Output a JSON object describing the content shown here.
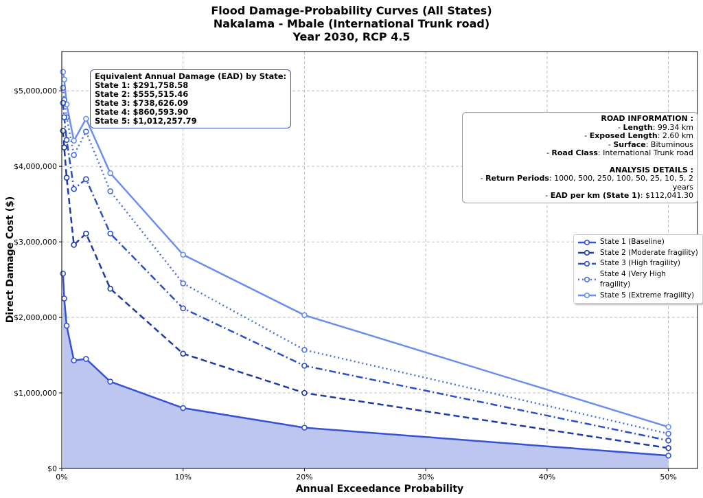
{
  "title": [
    "Flood Damage-Probability Curves (All States)",
    "Nakalama - Mbale (International Trunk road)",
    "Year 2030, RCP 4.5"
  ],
  "ead_box": {
    "heading": "Equivalent Annual Damage (EAD) by State:",
    "lines": [
      "State 1: $291,758.58",
      "State 2: $555,515.46",
      "State 3: $738,626.09",
      "State 4: $860,593.90",
      "State 5: $1,012,257.79"
    ]
  },
  "road_info": {
    "heading": "ROAD INFORMATION :",
    "items": [
      {
        "label": "Length",
        "value": "99.34 km"
      },
      {
        "label": "Exposed Length",
        "value": "2.60 km"
      },
      {
        "label": "Surface",
        "value": "Bituminous"
      },
      {
        "label": "Road Class",
        "value": "International Trunk road"
      }
    ],
    "analysis_heading": "ANALYSIS DETAILS :",
    "analysis_items": [
      {
        "label": "Return Periods",
        "value": "1000, 500, 250, 100, 50, 25, 10, 5, 2 years"
      },
      {
        "label": "EAD per km (State 1)",
        "value": "$112,041.30"
      }
    ]
  },
  "chart_data": {
    "type": "line",
    "title": "Flood Damage-Probability Curves (All States)",
    "xlabel": "Annual Exceedance Probability",
    "ylabel": "Direct Damage Cost ($)",
    "xlim": [
      0,
      52.4
    ],
    "ylim": [
      0,
      5520000
    ],
    "grid": true,
    "legend_position": "center-right",
    "x_ticks": [
      0,
      10,
      20,
      30,
      40,
      50
    ],
    "x_tick_labels": [
      "0%",
      "10%",
      "20%",
      "30%",
      "40%",
      "50%"
    ],
    "y_ticks": [
      0,
      1000000,
      2000000,
      3000000,
      4000000,
      5000000
    ],
    "y_tick_labels": [
      "$0",
      "$1,000,000",
      "$2,000,000",
      "$3,000,000",
      "$4,000,000",
      "$5,000,000"
    ],
    "x": [
      0.1,
      0.2,
      0.4,
      1,
      2,
      4,
      10,
      20,
      50
    ],
    "series": [
      {
        "name": "State 1 (Baseline)",
        "color": "#3551d4",
        "dash": "",
        "fill": "#bcc6ee",
        "values": [
          2580000,
          2250000,
          1890000,
          1430000,
          1450000,
          1150000,
          800000,
          540000,
          170000
        ]
      },
      {
        "name": "State 2 (Moderate fragility)",
        "color": "#1d3aa6",
        "dash": "9,5",
        "values": [
          4470000,
          4250000,
          3850000,
          2960000,
          3110000,
          2380000,
          1520000,
          1000000,
          270000
        ]
      },
      {
        "name": "State 3 (High fragility)",
        "color": "#2c4ec8",
        "dash": "10,4,2,4",
        "values": [
          4840000,
          4650000,
          4350000,
          3700000,
          3830000,
          3110000,
          2120000,
          1360000,
          370000
        ]
      },
      {
        "name": "State 4 (Very High fragility)",
        "color": "#4a6ee0",
        "dash": "2,4",
        "values": [
          5040000,
          4880000,
          4650000,
          4150000,
          4460000,
          3670000,
          2450000,
          1570000,
          460000
        ]
      },
      {
        "name": "State 5 (Extreme fragility)",
        "color": "#6b8ef0",
        "dash": "",
        "values": [
          5250000,
          5150000,
          4820000,
          4340000,
          4630000,
          3910000,
          2830000,
          2030000,
          550000
        ]
      }
    ]
  }
}
